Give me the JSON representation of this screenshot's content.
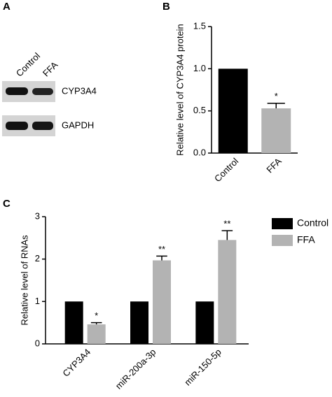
{
  "blot": {
    "panel": "A",
    "lanes": [
      "Control",
      "FFA"
    ],
    "rows": [
      "CYP3A4",
      "GAPDH"
    ]
  },
  "chart_data": [
    {
      "type": "bar",
      "panel": "B",
      "ylabel": "Relative level of CYP3A4 protein",
      "categories": [
        "Control",
        "FFA"
      ],
      "values": [
        1.0,
        0.53
      ],
      "errors": [
        null,
        0.06
      ],
      "colors": [
        "#000000",
        "#b3b3b3"
      ],
      "significance": [
        null,
        "*"
      ],
      "ylim": [
        0,
        1.5
      ],
      "yticks": [
        {
          "value": 0,
          "label": "0.0"
        },
        {
          "value": 0.5,
          "label": "0.5"
        },
        {
          "value": 1,
          "label": "1.0"
        },
        {
          "value": 1.5,
          "label": "1.5"
        }
      ]
    },
    {
      "type": "grouped-bar",
      "panel": "C",
      "ylabel": "Relative level of RNAs",
      "categories": [
        "CYP3A4",
        "miR-200a-3p",
        "miR-150-5p"
      ],
      "series": [
        {
          "name": "Control",
          "color": "#000000",
          "values": [
            1,
            1,
            1
          ]
        },
        {
          "name": "FFA",
          "color": "#b3b3b3",
          "values": [
            0.46,
            1.97,
            2.45
          ],
          "errors": [
            0.04,
            0.1,
            0.22
          ],
          "significance": [
            "*",
            "**",
            "**"
          ]
        }
      ],
      "ylim": [
        0,
        3
      ],
      "yticks": [
        0,
        1,
        2,
        3
      ],
      "legend": "right"
    }
  ]
}
